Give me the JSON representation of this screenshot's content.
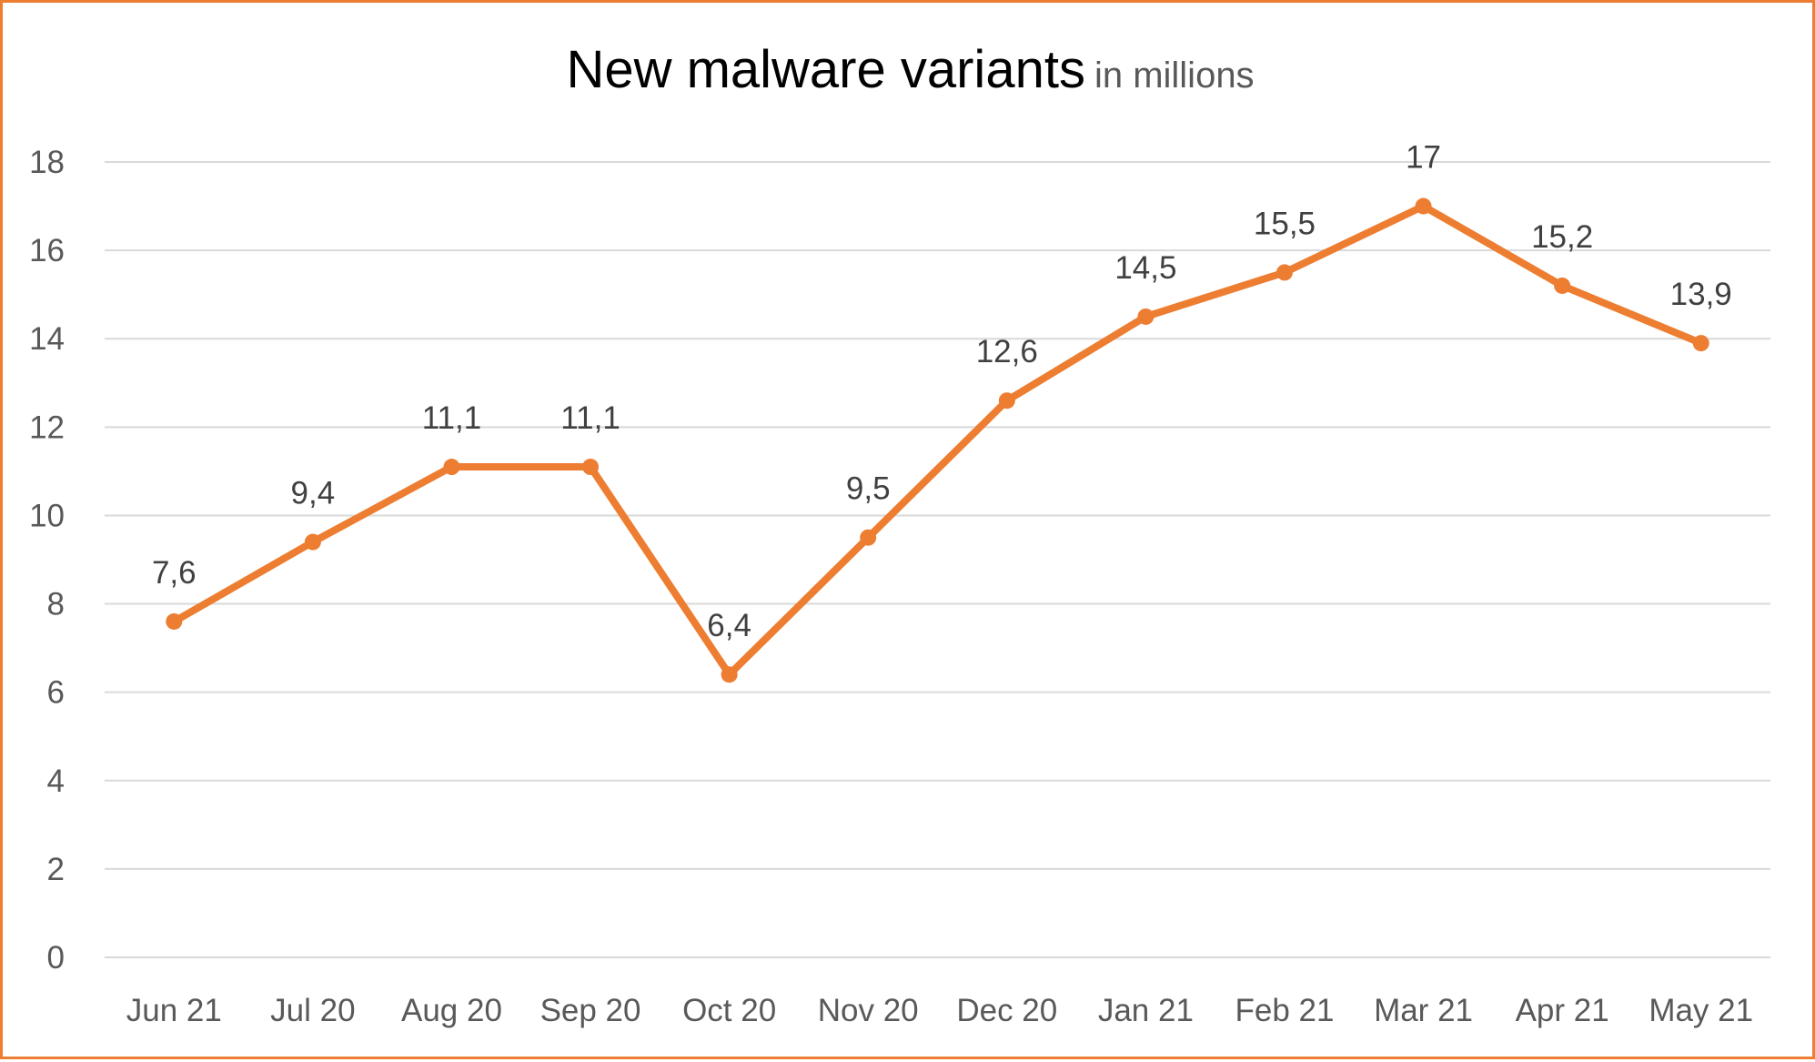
{
  "chart_data": {
    "type": "line",
    "title": "New malware variants",
    "subtitle": "in millions",
    "categories": [
      "Jun 21",
      "Jul 20",
      "Aug 20",
      "Sep 20",
      "Oct 20",
      "Nov 20",
      "Dec 20",
      "Jan 21",
      "Feb 21",
      "Mar 21",
      "Apr 21",
      "May 21"
    ],
    "series": [
      {
        "values": [
          7.6,
          9.4,
          11.1,
          11.1,
          6.4,
          9.5,
          12.6,
          14.5,
          15.5,
          17,
          15.2,
          13.9
        ],
        "data_labels": [
          "7,6",
          "9,4",
          "11,1",
          "11,1",
          "6,4",
          "9,5",
          "12,6",
          "14,5",
          "15,5",
          "17",
          "15,2",
          "13,9"
        ],
        "color": "#ED7D31"
      }
    ],
    "ylim": [
      0,
      18
    ],
    "yticks": [
      "0",
      "2",
      "4",
      "6",
      "8",
      "10",
      "12",
      "14",
      "16",
      "18"
    ],
    "grid": true,
    "legend": "none",
    "xlabel": "",
    "ylabel": ""
  },
  "colors": {
    "accent": "#ED7D31",
    "gridline": "#D9D9D9",
    "border": "#ED7D31"
  }
}
